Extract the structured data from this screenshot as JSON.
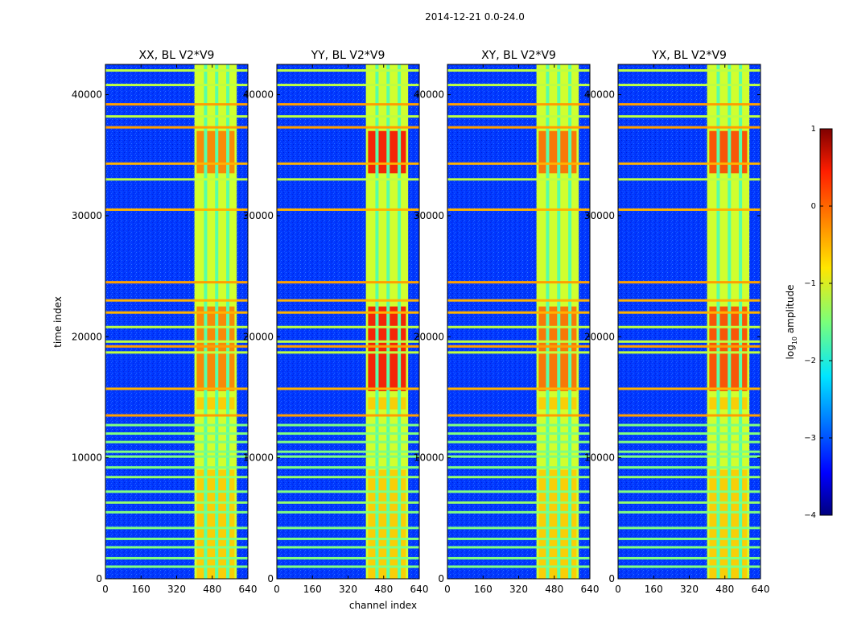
{
  "figure_title": "2014-12-21 0.0-24.0",
  "chart_data": {
    "type": "heatmap",
    "title": "2014-12-21 0.0-24.0",
    "xlabel": "channel index",
    "ylabel": "time index",
    "xlim": [
      0,
      640
    ],
    "ylim": [
      0,
      42500
    ],
    "xticks": [
      0,
      160,
      320,
      480,
      640
    ],
    "yticks": [
      0,
      10000,
      20000,
      30000,
      40000
    ],
    "panels": [
      {
        "title": "XX, BL V2*V9",
        "peak_level": -0.2
      },
      {
        "title": "YY, BL V2*V9",
        "peak_level": 0.4
      },
      {
        "title": "XY, BL V2*V9",
        "peak_level": -0.1
      },
      {
        "title": "YX, BL V2*V9",
        "peak_level": 0.1
      }
    ],
    "colorbar": {
      "label": "log10 amplitude",
      "label_base": "log",
      "label_subscript": "10",
      "label_suffix": " amplitude",
      "range": [
        -4,
        1
      ],
      "ticks": [
        1,
        0,
        -1,
        -2,
        -3,
        -4
      ],
      "tick_labels": [
        "1",
        "0",
        "−1",
        "−2",
        "−3",
        "−4"
      ],
      "colormap": "jet"
    },
    "active_channels": [
      400,
      590
    ],
    "channel_gaps": [
      450,
      500,
      550
    ],
    "bright_time_ranges": [
      [
        33500,
        37000
      ],
      [
        15500,
        22500
      ],
      [
        14000,
        15000
      ],
      [
        0,
        9000
      ]
    ],
    "flagged_time_rows": [
      {
        "t": 1000,
        "level": -1.5
      },
      {
        "t": 1700,
        "level": -1.5
      },
      {
        "t": 2600,
        "level": -1.5
      },
      {
        "t": 3300,
        "level": -1.5
      },
      {
        "t": 4200,
        "level": -1.5
      },
      {
        "t": 5500,
        "level": -1.5
      },
      {
        "t": 6300,
        "level": -1.4
      },
      {
        "t": 7200,
        "level": -1.5
      },
      {
        "t": 8400,
        "level": -1.4
      },
      {
        "t": 9200,
        "level": -1.5
      },
      {
        "t": 10100,
        "level": -1.5
      },
      {
        "t": 10500,
        "level": -1.5
      },
      {
        "t": 11300,
        "level": -1.5
      },
      {
        "t": 12000,
        "level": -1.5
      },
      {
        "t": 12700,
        "level": -1.5
      },
      {
        "t": 13500,
        "level": -0.4
      },
      {
        "t": 15700,
        "level": -0.5
      },
      {
        "t": 18700,
        "level": -1.2
      },
      {
        "t": 19200,
        "level": -0.4
      },
      {
        "t": 19600,
        "level": -1.2
      },
      {
        "t": 20800,
        "level": -1.2
      },
      {
        "t": 22000,
        "level": -0.5
      },
      {
        "t": 23000,
        "level": -0.5
      },
      {
        "t": 24500,
        "level": -0.4
      },
      {
        "t": 30500,
        "level": -0.5
      },
      {
        "t": 33000,
        "level": -1.2
      },
      {
        "t": 34300,
        "level": -0.5
      },
      {
        "t": 37300,
        "level": -0.4
      },
      {
        "t": 38200,
        "level": -1.2
      },
      {
        "t": 39200,
        "level": -0.4
      },
      {
        "t": 40800,
        "level": -1.2
      },
      {
        "t": 42000,
        "level": -1.2
      }
    ]
  }
}
